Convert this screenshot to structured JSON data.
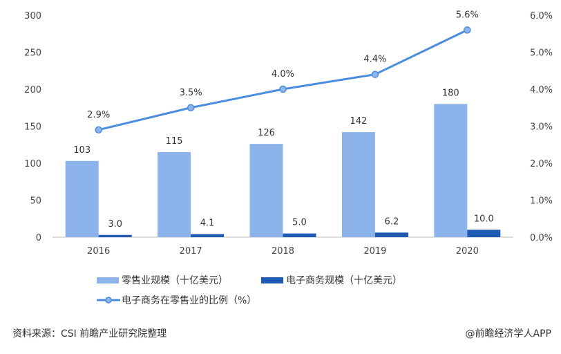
{
  "chart_data": {
    "type": "bar",
    "categories": [
      "2016",
      "2017",
      "2018",
      "2019",
      "2020"
    ],
    "series": [
      {
        "name": "零售业规模（十亿美元）",
        "type": "bar",
        "axis": "left",
        "color": "#8db4ea",
        "values": [
          103,
          115,
          126,
          142,
          180
        ],
        "labels": [
          "103",
          "115",
          "126",
          "142",
          "180"
        ]
      },
      {
        "name": "电子商务规模（十亿美元）",
        "type": "bar",
        "axis": "left",
        "color": "#1f5bb5",
        "values": [
          3.0,
          4.1,
          5.0,
          6.2,
          10.0
        ],
        "labels": [
          "3.0",
          "4.1",
          "5.0",
          "6.2",
          "10.0"
        ]
      },
      {
        "name": "电子商务在零售业的比例（%）",
        "type": "line",
        "axis": "right",
        "color": "#4a8ce0",
        "values": [
          2.9,
          3.5,
          4.0,
          4.4,
          5.6
        ],
        "labels": [
          "2.9%",
          "3.5%",
          "4.0%",
          "4.4%",
          "5.6%"
        ]
      }
    ],
    "ylim": [
      0,
      300
    ],
    "y_ticks": [
      "0",
      "50",
      "100",
      "150",
      "200",
      "250",
      "300"
    ],
    "y2lim": [
      0,
      6
    ],
    "y2_ticks": [
      "0.0%",
      "1.0%",
      "2.0%",
      "3.0%",
      "4.0%",
      "5.0%",
      "6.0%"
    ],
    "grid": false,
    "legend_placement": "bottom"
  },
  "footer": {
    "source": "资料来源：CSI 前瞻产业研究院整理",
    "credit": "@前瞻经济学人APP"
  }
}
